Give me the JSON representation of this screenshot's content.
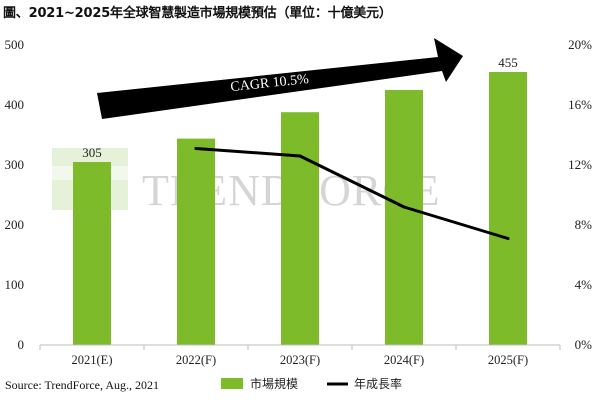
{
  "title": "圖、2021~2025年全球智慧製造市場規模預估（單位：十億美元）",
  "source": "Source: TrendForce, Aug., 2021",
  "watermark": "TRENDFORCE",
  "cagr_label": "CAGR 10.5%",
  "colors": {
    "bar": "#7dbb2b",
    "line": "#000000",
    "grid": "#d9d9d9",
    "watermark": "#c8c8c8"
  },
  "chart_data": {
    "type": "bar",
    "categories": [
      "2021(E)",
      "2022(F)",
      "2023(F)",
      "2024(F)",
      "2025(F)"
    ],
    "series": [
      {
        "name": "市場規模",
        "type": "bar",
        "axis": "left",
        "values": [
          305,
          344,
          388,
          425,
          455
        ]
      },
      {
        "name": "年成長率",
        "type": "line",
        "axis": "right",
        "values": [
          null,
          13.1,
          12.6,
          9.2,
          7.1
        ]
      }
    ],
    "data_labels": [
      {
        "category": "2021(E)",
        "text": "305"
      },
      {
        "category": "2025(F)",
        "text": "455"
      }
    ],
    "y_left": {
      "min": 0,
      "max": 500,
      "ticks": [
        "0",
        "100",
        "200",
        "300",
        "400",
        "500"
      ]
    },
    "y_right": {
      "min": 0,
      "max": 20,
      "unit": "%",
      "ticks": [
        "0%",
        "4%",
        "8%",
        "12%",
        "16%",
        "20%"
      ]
    },
    "grid": false,
    "legend_position": "bottom"
  }
}
